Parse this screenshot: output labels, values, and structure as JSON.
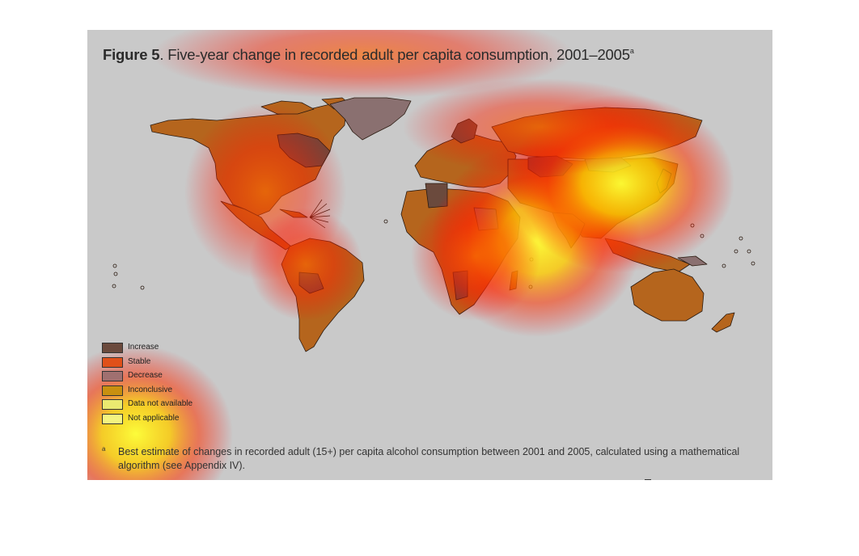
{
  "figure": {
    "label": "Figure 5",
    "title": ". Five-year change in recorded adult per capita consumption, 2001–2005",
    "superscript": "a"
  },
  "legend": {
    "items": [
      {
        "label": "Increase",
        "color": "#6b4a3d"
      },
      {
        "label": "Stable",
        "color": "#b5651d"
      },
      {
        "label": "Decrease",
        "color": "#8a7070"
      },
      {
        "label": "Inconclusive",
        "color": "#b08020"
      },
      {
        "label": "Data not available",
        "color": "#d8d8b8"
      },
      {
        "label": "Not applicable",
        "color": "#e4e4e4"
      }
    ]
  },
  "footnote": {
    "mark": "a",
    "text": "Best estimate of changes in recorded adult (15+) per capita alcohol consumption between 2001 and 2005, calculated using a mathematical algorithm (see Appendix IV)."
  },
  "colors": {
    "panel_background": "#c9c9c9",
    "land_stable": "#b5651d",
    "land_increase": "#6b4a3d",
    "land_decrease": "#8a7070",
    "outline": "#2a1a10"
  }
}
